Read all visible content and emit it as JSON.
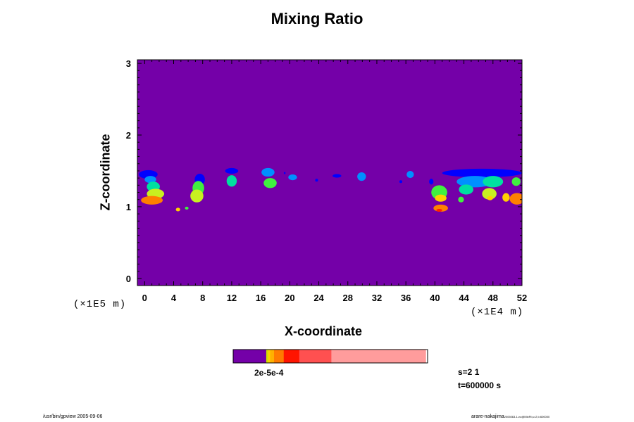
{
  "chart_data": {
    "type": "heatmap",
    "title": "Mixing Ratio",
    "xlabel": "X-coordinate",
    "ylabel": "Z-coordinate",
    "x_unit": "(×1E4 m)",
    "z_unit": "(×1E5 m)",
    "xlim": [
      -1,
      52
    ],
    "ylim": [
      -0.1,
      3.05
    ],
    "x_ticks": [
      0,
      4,
      8,
      12,
      16,
      20,
      24,
      28,
      32,
      36,
      40,
      44,
      48,
      52
    ],
    "y_ticks": [
      0,
      1,
      2,
      3
    ],
    "background_color": "#7400a8",
    "palette": [
      "#0000ff",
      "#0090ff",
      "#00e0a0",
      "#40f040",
      "#c8f020",
      "#ffd000",
      "#ff8000",
      "#ff2000"
    ],
    "blobs": [
      {
        "x": 0.5,
        "z": 1.45,
        "rx": 1.3,
        "rz": 0.06,
        "level": 0
      },
      {
        "x": 0.8,
        "z": 1.38,
        "rx": 0.8,
        "rz": 0.05,
        "level": 1
      },
      {
        "x": 1.2,
        "z": 1.28,
        "rx": 0.9,
        "rz": 0.07,
        "level": 2
      },
      {
        "x": 1.5,
        "z": 1.18,
        "rx": 1.2,
        "rz": 0.07,
        "level": 4
      },
      {
        "x": 1.0,
        "z": 1.09,
        "rx": 1.5,
        "rz": 0.06,
        "level": 6
      },
      {
        "x": 4.6,
        "z": 0.96,
        "rx": 0.3,
        "rz": 0.025,
        "level": 5
      },
      {
        "x": 5.8,
        "z": 0.98,
        "rx": 0.25,
        "rz": 0.02,
        "level": 3
      },
      {
        "x": 7.6,
        "z": 1.38,
        "rx": 0.7,
        "rz": 0.08,
        "level": 0
      },
      {
        "x": 7.4,
        "z": 1.26,
        "rx": 0.8,
        "rz": 0.1,
        "level": 3
      },
      {
        "x": 7.2,
        "z": 1.15,
        "rx": 0.9,
        "rz": 0.09,
        "level": 4
      },
      {
        "x": 12.0,
        "z": 1.5,
        "rx": 0.9,
        "rz": 0.04,
        "level": 0
      },
      {
        "x": 12.0,
        "z": 1.36,
        "rx": 0.7,
        "rz": 0.08,
        "level": 2
      },
      {
        "x": 17.0,
        "z": 1.48,
        "rx": 0.9,
        "rz": 0.06,
        "level": 1
      },
      {
        "x": 17.3,
        "z": 1.33,
        "rx": 0.9,
        "rz": 0.07,
        "level": 3
      },
      {
        "x": 19.3,
        "z": 1.47,
        "rx": 0.12,
        "rz": 0.015,
        "level": 0
      },
      {
        "x": 20.4,
        "z": 1.41,
        "rx": 0.6,
        "rz": 0.04,
        "level": 1
      },
      {
        "x": 23.7,
        "z": 1.37,
        "rx": 0.2,
        "rz": 0.02,
        "level": 0
      },
      {
        "x": 26.5,
        "z": 1.43,
        "rx": 0.6,
        "rz": 0.025,
        "level": 0
      },
      {
        "x": 29.9,
        "z": 1.42,
        "rx": 0.6,
        "rz": 0.06,
        "level": 1
      },
      {
        "x": 35.3,
        "z": 1.35,
        "rx": 0.2,
        "rz": 0.02,
        "level": 0
      },
      {
        "x": 36.6,
        "z": 1.45,
        "rx": 0.5,
        "rz": 0.05,
        "level": 1
      },
      {
        "x": 39.5,
        "z": 1.35,
        "rx": 0.3,
        "rz": 0.04,
        "level": 0
      },
      {
        "x": 40.6,
        "z": 1.2,
        "rx": 1.1,
        "rz": 0.1,
        "level": 3
      },
      {
        "x": 40.8,
        "z": 1.12,
        "rx": 0.8,
        "rz": 0.05,
        "level": 5
      },
      {
        "x": 40.8,
        "z": 0.98,
        "rx": 1.0,
        "rz": 0.05,
        "level": 6
      },
      {
        "x": 40.6,
        "z": 0.95,
        "rx": 0.4,
        "rz": 0.02,
        "level": 7
      },
      {
        "x": 46.5,
        "z": 1.47,
        "rx": 5.5,
        "rz": 0.06,
        "level": 0
      },
      {
        "x": 45.5,
        "z": 1.35,
        "rx": 2.5,
        "rz": 0.08,
        "level": 1
      },
      {
        "x": 44.3,
        "z": 1.24,
        "rx": 1.0,
        "rz": 0.07,
        "level": 2
      },
      {
        "x": 48.0,
        "z": 1.35,
        "rx": 1.4,
        "rz": 0.08,
        "level": 2
      },
      {
        "x": 47.5,
        "z": 1.18,
        "rx": 1.0,
        "rz": 0.08,
        "level": 4
      },
      {
        "x": 47.6,
        "z": 1.12,
        "rx": 0.4,
        "rz": 0.03,
        "level": 5
      },
      {
        "x": 49.8,
        "z": 1.13,
        "rx": 0.5,
        "rz": 0.06,
        "level": 5
      },
      {
        "x": 51.2,
        "z": 1.35,
        "rx": 0.6,
        "rz": 0.06,
        "level": 3
      },
      {
        "x": 51.3,
        "z": 1.11,
        "rx": 1.0,
        "rz": 0.08,
        "level": 6
      },
      {
        "x": 43.6,
        "z": 1.1,
        "rx": 0.4,
        "rz": 0.04,
        "level": 3
      }
    ],
    "colorbar": {
      "segments": [
        {
          "fraction": 0.17,
          "color": "#7400a8"
        },
        {
          "fraction": 0.01,
          "color": "#d0e000"
        },
        {
          "fraction": 0.01,
          "color": "#ffd000"
        },
        {
          "fraction": 0.02,
          "color": "#ffb000"
        },
        {
          "fraction": 0.05,
          "color": "#ff7a00"
        },
        {
          "fraction": 0.08,
          "color": "#ff1400"
        },
        {
          "fraction": 0.165,
          "color": "#ff5050"
        },
        {
          "fraction": 0.485,
          "color": "#ff9c9c"
        }
      ],
      "label": "2e-5e-4"
    }
  },
  "info": {
    "s_label": "s=2 1",
    "t_label": "t=600000 s"
  },
  "footer": {
    "left": "/usr/bin/gpview 2005-09-06",
    "right": "arare-nakajima",
    "right_small": "2005063-1-nc@MixRt,s=2,t=600000"
  }
}
